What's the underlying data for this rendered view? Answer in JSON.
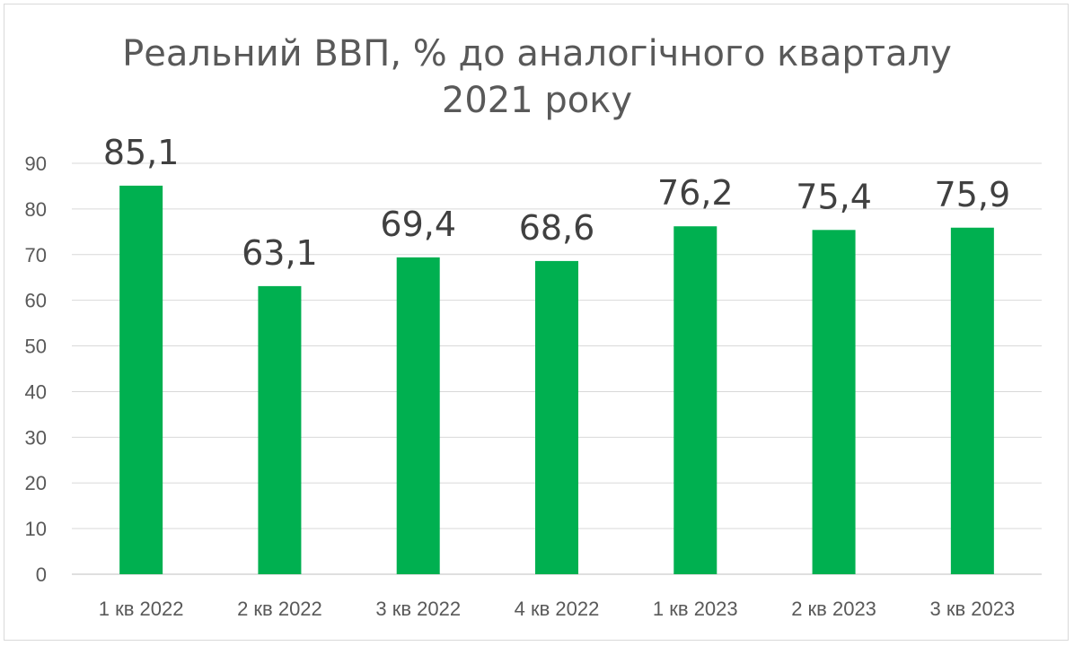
{
  "chart_data": {
    "type": "bar",
    "title_lines": [
      "Реальний ВВП, % до аналогічного кварталу",
      "2021 року"
    ],
    "categories": [
      "1 кв 2022",
      "2 кв 2022",
      "3 кв 2022",
      "4 кв 2022",
      "1 кв 2023",
      "2 кв 2023",
      "3 кв 2023"
    ],
    "values": [
      85.1,
      63.1,
      69.4,
      68.6,
      76.2,
      75.4,
      75.9
    ],
    "data_labels": [
      "85,1",
      "63,1",
      "69,4",
      "68,6",
      "76,2",
      "75,4",
      "75,9"
    ],
    "ylim": [
      0,
      90
    ],
    "yticks": [
      "0",
      "10",
      "20",
      "30",
      "40",
      "50",
      "60",
      "70",
      "80",
      "90"
    ],
    "grid": true,
    "bar_color": "#00b050",
    "legend": "none"
  }
}
